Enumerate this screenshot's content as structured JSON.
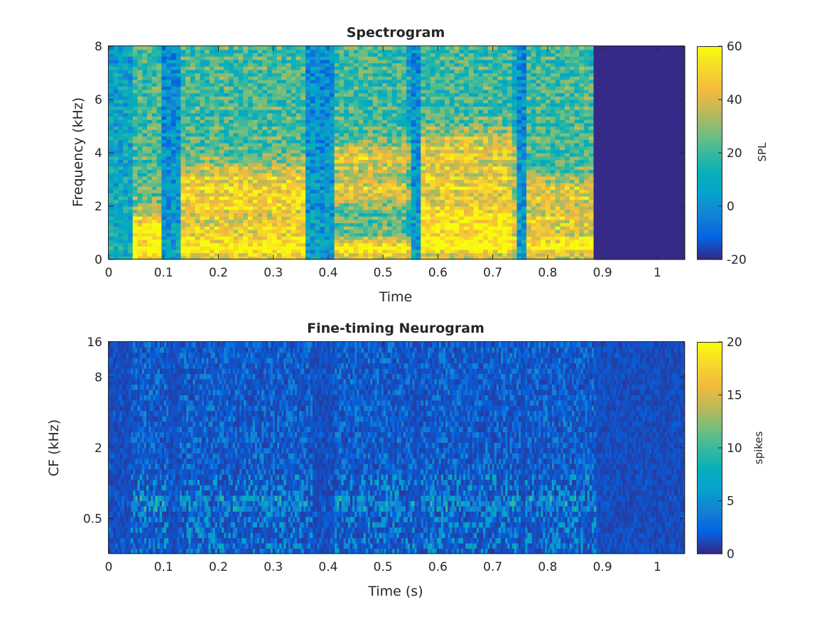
{
  "colors": {
    "text": "#262626",
    "axis": "#262626",
    "background": "#ffffff"
  },
  "colormap": "parula",
  "chart_data": [
    {
      "type": "heatmap",
      "title": "Spectrogram",
      "xlabel": "Time",
      "ylabel": "Frequency (kHz)",
      "xlim": [
        0,
        1.05
      ],
      "ylim": [
        0,
        8
      ],
      "xticks": [
        0,
        0.1,
        0.2,
        0.3,
        0.4,
        0.5,
        0.6,
        0.7,
        0.8,
        0.9,
        1
      ],
      "xticklabels": [
        "0",
        "0.1",
        "0.2",
        "0.3",
        "0.4",
        "0.5",
        "0.6",
        "0.7",
        "0.8",
        "0.9",
        "1"
      ],
      "yticks": [
        0,
        2,
        4,
        6,
        8
      ],
      "yticklabels": [
        "0",
        "2",
        "4",
        "6",
        "8"
      ],
      "colorbar": {
        "label": "SPL",
        "clim": [
          -20,
          60
        ],
        "ticks": [
          -20,
          0,
          20,
          40,
          60
        ],
        "ticklabels": [
          "-20",
          "0",
          "20",
          "40",
          "60"
        ]
      },
      "signal_end_time": 0.885,
      "quiet_segments": [
        [
          0.1,
          0.13
        ],
        [
          0.355,
          0.41
        ],
        [
          0.545,
          0.57
        ],
        [
          0.735,
          0.76
        ]
      ],
      "formant_segments": [
        {
          "t": [
            0.04,
            0.1
          ],
          "f": [
            0.3,
            0.9,
            1.4
          ]
        },
        {
          "t": [
            0.13,
            0.36
          ],
          "f": [
            0.4,
            1.1,
            2.1,
            3.0
          ]
        },
        {
          "t": [
            0.41,
            0.55
          ],
          "f": [
            0.4,
            2.6,
            3.8
          ]
        },
        {
          "t": [
            0.57,
            0.74
          ],
          "f": [
            0.5,
            1.1,
            1.7,
            2.8,
            4.1
          ]
        },
        {
          "t": [
            0.76,
            0.88
          ],
          "f": [
            0.5,
            1.4,
            2.5
          ]
        }
      ]
    },
    {
      "type": "heatmap",
      "title": "Fine-timing Neurogram",
      "xlabel": "Time (s)",
      "ylabel": "CF (kHz)",
      "xlim": [
        0,
        1.05
      ],
      "ylim_khz": [
        0.25,
        16
      ],
      "yscale": "log",
      "xticks": [
        0,
        0.1,
        0.2,
        0.3,
        0.4,
        0.5,
        0.6,
        0.7,
        0.8,
        0.9,
        1
      ],
      "xticklabels": [
        "0",
        "0.1",
        "0.2",
        "0.3",
        "0.4",
        "0.5",
        "0.6",
        "0.7",
        "0.8",
        "0.9",
        "1"
      ],
      "yticks": [
        0.5,
        2,
        8,
        16
      ],
      "yticklabels": [
        "0.5",
        "2",
        "8",
        "16"
      ],
      "colorbar": {
        "label": "spikes",
        "clim": [
          0,
          20
        ],
        "ticks": [
          0,
          5,
          10,
          15,
          20
        ],
        "ticklabels": [
          "0",
          "5",
          "10",
          "15",
          "20"
        ]
      }
    }
  ]
}
